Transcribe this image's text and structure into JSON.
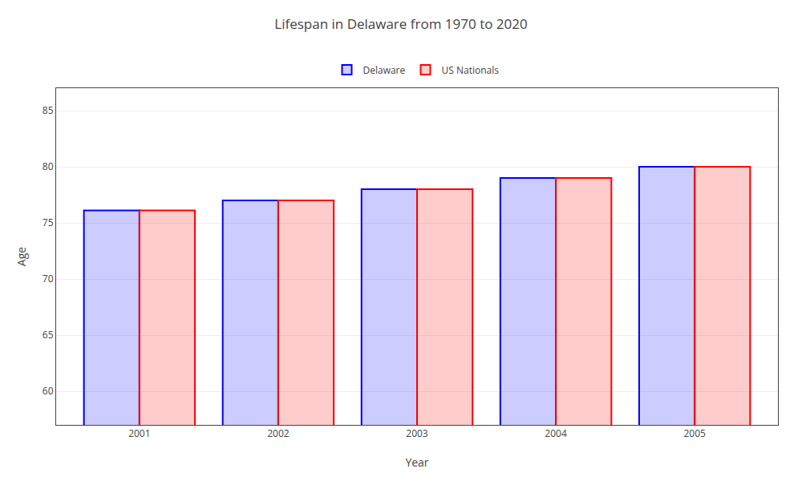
{
  "chart_data": {
    "type": "bar",
    "title": "Lifespan in Delaware from 1970 to 2020",
    "xlabel": "Year",
    "ylabel": "Age",
    "categories": [
      "2001",
      "2002",
      "2003",
      "2004",
      "2005"
    ],
    "series": [
      {
        "name": "Delaware",
        "color": "#0000ff",
        "values": [
          76.1,
          77.0,
          78.0,
          79.0,
          80.0
        ]
      },
      {
        "name": "US Nationals",
        "color": "#ff0000",
        "values": [
          76.1,
          77.0,
          78.0,
          79.0,
          80.0
        ]
      }
    ],
    "ylim": [
      57,
      87
    ],
    "yticks": [
      60,
      65,
      70,
      75,
      80,
      85
    ],
    "grid": true,
    "legend": "upper center"
  }
}
